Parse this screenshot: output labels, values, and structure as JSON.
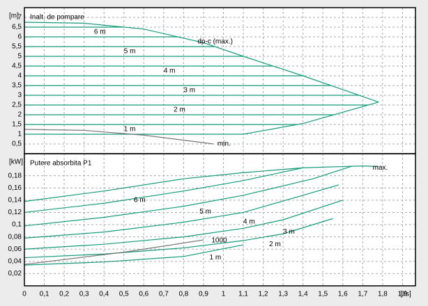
{
  "chart_data": [
    {
      "type": "line",
      "title": "Inalt. de pompare",
      "y_unit": "[m]",
      "xlim": [
        0,
        1.965
      ],
      "ylim": [
        0,
        7.5
      ],
      "yticks": [
        {
          "value": 0.5,
          "label": "0,5"
        },
        1,
        {
          "value": 1.5,
          "label": "1,5"
        },
        2,
        {
          "value": 2.5,
          "label": "2,5"
        },
        3,
        {
          "value": 3.5,
          "label": "3,5"
        },
        4,
        {
          "value": 4.5,
          "label": "4,5"
        },
        5,
        {
          "value": 5.5,
          "label": "5,5"
        },
        6,
        {
          "value": 6.5,
          "label": "6,5"
        },
        7
      ],
      "grid": true,
      "series": [
        {
          "color": "#139a7c",
          "x": [
            0,
            0.3,
            0.6,
            0.9,
            1.1,
            1.4,
            1.78
          ],
          "values": [
            6.75,
            6.7,
            6.4,
            5.7,
            5.0,
            4.0,
            2.65
          ]
        },
        {
          "color": "#139a7c",
          "x": [
            0,
            1.1,
            1.4,
            1.78
          ],
          "values": [
            1.0,
            1.0,
            1.55,
            2.65
          ]
        },
        {
          "color": "#139a7c",
          "x": [
            0,
            0.5
          ],
          "values": [
            6.5,
            6.5
          ]
        },
        {
          "color": "#139a7c",
          "x": [
            0,
            0.77
          ],
          "values": [
            6.0,
            6.0
          ]
        },
        {
          "color": "#139a7c",
          "x": [
            0,
            0.957
          ],
          "values": [
            5.5,
            5.5
          ]
        },
        {
          "color": "#139a7c",
          "x": [
            0,
            1.1
          ],
          "values": [
            5.0,
            5.0
          ]
        },
        {
          "color": "#139a7c",
          "x": [
            0,
            1.25
          ],
          "values": [
            4.5,
            4.5
          ]
        },
        {
          "color": "#139a7c",
          "x": [
            0,
            1.4
          ],
          "values": [
            4.0,
            4.0
          ]
        },
        {
          "color": "#139a7c",
          "x": [
            0,
            1.54
          ],
          "values": [
            3.5,
            3.5
          ]
        },
        {
          "color": "#139a7c",
          "x": [
            0,
            1.68
          ],
          "values": [
            3.0,
            3.0
          ]
        },
        {
          "color": "#139a7c",
          "x": [
            0,
            1.73
          ],
          "values": [
            2.5,
            2.5
          ]
        },
        {
          "color": "#139a7c",
          "x": [
            0,
            1.555
          ],
          "values": [
            2.0,
            2.0
          ]
        },
        {
          "color": "#139a7c",
          "x": [
            0,
            1.37
          ],
          "values": [
            1.5,
            1.5
          ]
        },
        {
          "color": "#777777",
          "x": [
            0,
            0.3,
            0.6,
            0.95
          ],
          "values": [
            1.25,
            1.2,
            0.95,
            0.5
          ]
        }
      ],
      "annotations": [
        {
          "text": "6 m",
          "x": 0.35,
          "y": 6.25,
          "color": "#000000"
        },
        {
          "text": "5 m",
          "x": 0.5,
          "y": 5.25,
          "color": "#000000"
        },
        {
          "text": "4 m",
          "x": 0.7,
          "y": 4.25,
          "color": "#000000"
        },
        {
          "text": "3 m",
          "x": 0.8,
          "y": 3.25,
          "color": "#000000"
        },
        {
          "text": "2 m",
          "x": 0.75,
          "y": 2.25,
          "color": "#000000"
        },
        {
          "text": "1 m",
          "x": 0.5,
          "y": 1.25,
          "color": "#000000"
        },
        {
          "text": "dp-c (max.)",
          "x": 0.87,
          "y": 5.75,
          "color": "#000000"
        },
        {
          "text": "min.",
          "x": 0.97,
          "y": 0.5,
          "color": "#777777"
        }
      ]
    },
    {
      "type": "line",
      "title": "Putere absorbita P1",
      "y_unit": "[kW]",
      "x_unit": "[l/s]",
      "xlim": [
        0,
        1.965
      ],
      "ylim": [
        0,
        0.216
      ],
      "xticks": [
        0,
        {
          "value": 0.1,
          "label": "0,1"
        },
        {
          "value": 0.2,
          "label": "0,2"
        },
        {
          "value": 0.3,
          "label": "0,3"
        },
        {
          "value": 0.4,
          "label": "0,4"
        },
        {
          "value": 0.5,
          "label": "0,5"
        },
        {
          "value": 0.6,
          "label": "0,6"
        },
        {
          "value": 0.7,
          "label": "0,7"
        },
        {
          "value": 0.8,
          "label": "0,8"
        },
        {
          "value": 0.9,
          "label": "0,9"
        },
        1,
        {
          "value": 1.1,
          "label": "1,1"
        },
        {
          "value": 1.2,
          "label": "1,2"
        },
        {
          "value": 1.3,
          "label": "1,3"
        },
        {
          "value": 1.4,
          "label": "1,4"
        },
        {
          "value": 1.5,
          "label": "1,5"
        },
        {
          "value": 1.6,
          "label": "1,6"
        },
        {
          "value": 1.7,
          "label": "1,7"
        },
        {
          "value": 1.8,
          "label": "1,8"
        },
        {
          "value": 1.9,
          "label": "1,9"
        }
      ],
      "yticks": [
        {
          "value": 0.02,
          "label": "0,02"
        },
        {
          "value": 0.04,
          "label": "0,04"
        },
        {
          "value": 0.06,
          "label": "0,06"
        },
        {
          "value": 0.08,
          "label": "0,08"
        },
        {
          "value": 0.1,
          "label": "0,1"
        },
        {
          "value": 0.12,
          "label": "0,12"
        },
        {
          "value": 0.14,
          "label": "0,14"
        },
        {
          "value": 0.16,
          "label": "0,16"
        },
        {
          "value": 0.18,
          "label": "0,18"
        }
      ],
      "grid": true,
      "series": [
        {
          "color": "#139a7c",
          "x": [
            0,
            0.4,
            0.8,
            1.1,
            1.4,
            1.7,
            1.78
          ],
          "values": [
            0.138,
            0.155,
            0.175,
            0.185,
            0.193,
            0.196,
            0.195
          ]
        },
        {
          "color": "#139a7c",
          "x": [
            0,
            0.4,
            0.8,
            1.1,
            1.4
          ],
          "values": [
            0.12,
            0.135,
            0.155,
            0.172,
            0.193
          ]
        },
        {
          "color": "#139a7c",
          "x": [
            0,
            0.4,
            0.8,
            1.1,
            1.45,
            1.65
          ],
          "values": [
            0.098,
            0.112,
            0.13,
            0.148,
            0.175,
            0.196
          ]
        },
        {
          "color": "#139a7c",
          "x": [
            0,
            0.4,
            0.8,
            1.1,
            1.4,
            1.58
          ],
          "values": [
            0.078,
            0.088,
            0.104,
            0.12,
            0.148,
            0.165
          ]
        },
        {
          "color": "#139a7c",
          "x": [
            0,
            0.4,
            0.8,
            1.1,
            1.3,
            1.6
          ],
          "values": [
            0.06,
            0.068,
            0.08,
            0.094,
            0.108,
            0.14
          ]
        },
        {
          "color": "#139a7c",
          "x": [
            0,
            0.4,
            0.8,
            1.1,
            1.3,
            1.55
          ],
          "values": [
            0.046,
            0.052,
            0.062,
            0.074,
            0.085,
            0.11
          ]
        },
        {
          "color": "#139a7c",
          "x": [
            0,
            0.4,
            0.8,
            1.1
          ],
          "values": [
            0.034,
            0.039,
            0.048,
            0.067
          ]
        },
        {
          "color": "#777777",
          "x": [
            0,
            0.5,
            0.9
          ],
          "values": [
            0.035,
            0.055,
            0.075
          ]
        }
      ],
      "annotations": [
        {
          "text": "6 m",
          "x": 0.55,
          "y": 0.14,
          "color": "#000000"
        },
        {
          "text": "5 m",
          "x": 0.88,
          "y": 0.121,
          "color": "#000000"
        },
        {
          "text": "4 m",
          "x": 1.1,
          "y": 0.105,
          "color": "#000000"
        },
        {
          "text": "3 m",
          "x": 1.3,
          "y": 0.088,
          "color": "#000000"
        },
        {
          "text": "2 m",
          "x": 1.23,
          "y": 0.068,
          "color": "#000000"
        },
        {
          "text": "1 m",
          "x": 0.93,
          "y": 0.046,
          "color": "#000000"
        },
        {
          "text": "max.",
          "x": 1.75,
          "y": 0.193,
          "color": "#139a7c"
        },
        {
          "text": "1000",
          "x": 0.94,
          "y": 0.074,
          "color": "#777777"
        }
      ]
    }
  ]
}
